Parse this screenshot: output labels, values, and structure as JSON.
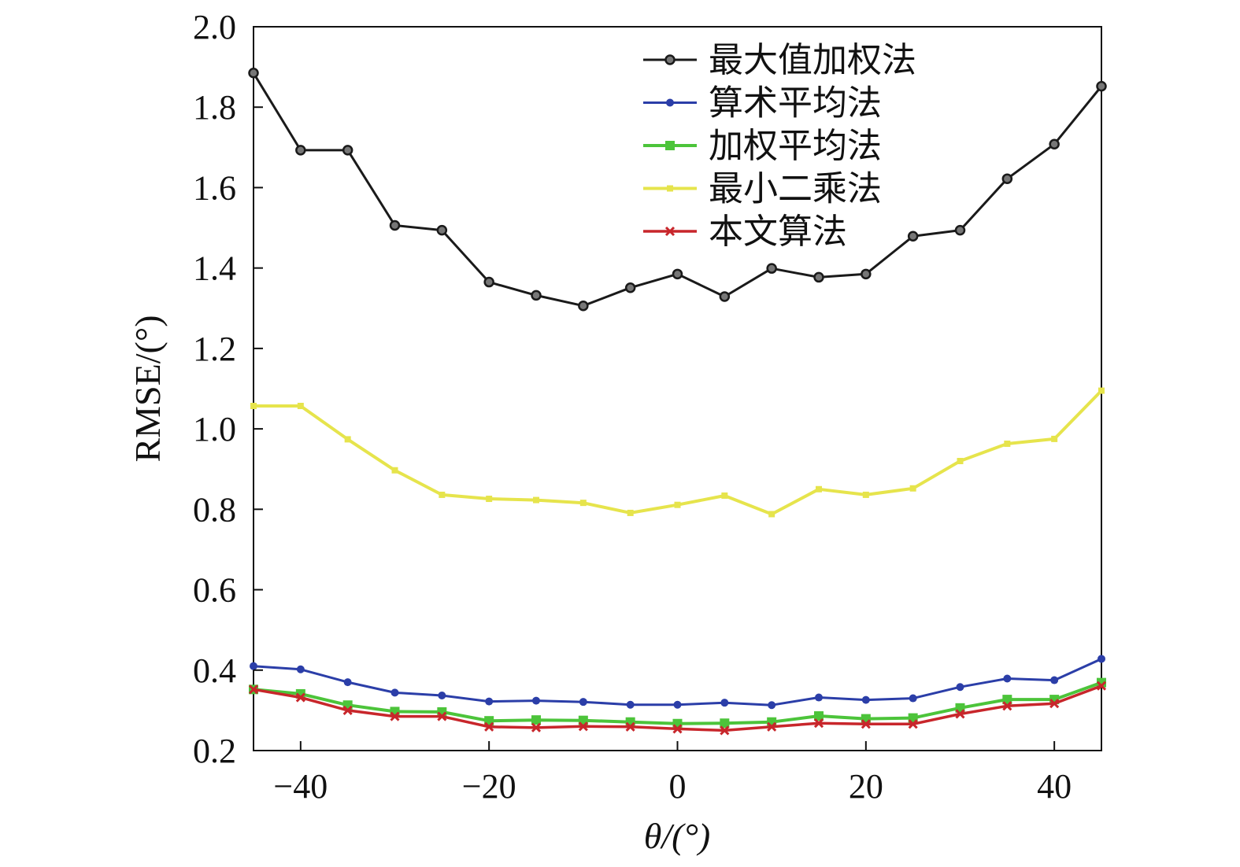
{
  "chart_data": {
    "type": "line",
    "xlabel": "θ/(°)",
    "ylabel": "RMSE/(°)",
    "xlim": [
      -45,
      45
    ],
    "ylim": [
      0.2,
      2.0
    ],
    "xticks": [
      -40,
      -20,
      0,
      20,
      40
    ],
    "xtick_labels": [
      "−40",
      "−20",
      "0",
      "20",
      "40"
    ],
    "yticks": [
      0.2,
      0.4,
      0.6,
      0.8,
      1.0,
      1.2,
      1.4,
      1.6,
      1.8,
      2.0
    ],
    "ytick_labels": [
      "0.2",
      "0.4",
      "0.6",
      "0.8",
      "1.0",
      "1.2",
      "1.4",
      "1.6",
      "1.8",
      "2.0"
    ],
    "grid": false,
    "legend_position": "top-right",
    "x": [
      -45,
      -40,
      -35,
      -30,
      -25,
      -20,
      -15,
      -10,
      -5,
      0,
      5,
      10,
      15,
      20,
      25,
      30,
      35,
      40,
      45
    ],
    "series": [
      {
        "name": "最大值加权法",
        "color": "#1a1a1a",
        "marker": "circle",
        "values": [
          1.885,
          1.693,
          1.693,
          1.506,
          1.494,
          1.365,
          1.332,
          1.306,
          1.351,
          1.385,
          1.329,
          1.399,
          1.377,
          1.385,
          1.479,
          1.494,
          1.622,
          1.708,
          1.852
        ]
      },
      {
        "name": "算术平均法",
        "color": "#2b3ea8",
        "marker": "dot",
        "values": [
          0.41,
          0.402,
          0.37,
          0.344,
          0.337,
          0.322,
          0.324,
          0.321,
          0.314,
          0.314,
          0.319,
          0.313,
          0.332,
          0.326,
          0.33,
          0.358,
          0.379,
          0.375,
          0.428
        ]
      },
      {
        "name": "加权平均法",
        "color": "#4cc43a",
        "marker": "square",
        "values": [
          0.352,
          0.341,
          0.313,
          0.297,
          0.296,
          0.274,
          0.276,
          0.275,
          0.271,
          0.267,
          0.268,
          0.271,
          0.286,
          0.279,
          0.281,
          0.306,
          0.327,
          0.327,
          0.369
        ]
      },
      {
        "name": "最小二乘法",
        "color": "#e6e44c",
        "marker": "small-square",
        "values": [
          1.057,
          1.057,
          0.974,
          0.897,
          0.836,
          0.826,
          0.823,
          0.816,
          0.791,
          0.811,
          0.834,
          0.788,
          0.85,
          0.836,
          0.852,
          0.92,
          0.963,
          0.975,
          1.095
        ]
      },
      {
        "name": "本文算法",
        "color": "#c8262b",
        "marker": "x",
        "values": [
          0.352,
          0.332,
          0.3,
          0.285,
          0.285,
          0.259,
          0.257,
          0.26,
          0.259,
          0.254,
          0.25,
          0.259,
          0.268,
          0.266,
          0.266,
          0.291,
          0.311,
          0.317,
          0.361
        ]
      }
    ]
  }
}
